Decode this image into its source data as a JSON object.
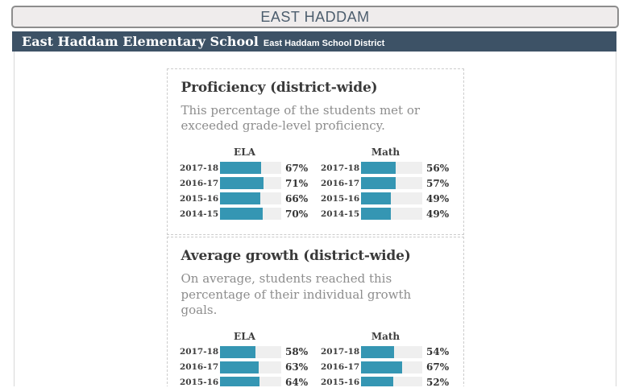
{
  "banner": {
    "label": "EAST HADDAM"
  },
  "header": {
    "school_name": "East Haddam Elementary School",
    "district_name": "East Haddam School District"
  },
  "colors": {
    "bar_fill": "#3596b3",
    "bar_track": "#efefef",
    "header_bg": "#3d5266",
    "banner_bg": "#efecec",
    "banner_border": "#8d8d8d",
    "banner_text": "#4d5e6e",
    "content_border": "#d8d8d8",
    "card_border": "#cccccc",
    "heading_text": "#3a3a3a",
    "muted_text": "#8d8d8d",
    "label_text": "#3e3e3e"
  },
  "sections": [
    {
      "title": "Proficiency (district-wide)",
      "description": "This percentage of the students met or exceeded grade-level proficiency.",
      "charts": [
        {
          "subject": "ELA",
          "rows": [
            {
              "year": "2017-18",
              "value": 67,
              "display": "67%"
            },
            {
              "year": "2016-17",
              "value": 71,
              "display": "71%"
            },
            {
              "year": "2015-16",
              "value": 66,
              "display": "66%"
            },
            {
              "year": "2014-15",
              "value": 70,
              "display": "70%"
            }
          ]
        },
        {
          "subject": "Math",
          "rows": [
            {
              "year": "2017-18",
              "value": 56,
              "display": "56%"
            },
            {
              "year": "2016-17",
              "value": 57,
              "display": "57%"
            },
            {
              "year": "2015-16",
              "value": 49,
              "display": "49%"
            },
            {
              "year": "2014-15",
              "value": 49,
              "display": "49%"
            }
          ]
        }
      ]
    },
    {
      "title": "Average growth (district-wide)",
      "description": "On average, students reached this percentage of their individual growth goals.",
      "charts": [
        {
          "subject": "ELA",
          "rows": [
            {
              "year": "2017-18",
              "value": 58,
              "display": "58%"
            },
            {
              "year": "2016-17",
              "value": 63,
              "display": "63%"
            },
            {
              "year": "2015-16",
              "value": 64,
              "display": "64%"
            }
          ]
        },
        {
          "subject": "Math",
          "rows": [
            {
              "year": "2017-18",
              "value": 54,
              "display": "54%"
            },
            {
              "year": "2016-17",
              "value": 67,
              "display": "67%"
            },
            {
              "year": "2015-16",
              "value": 52,
              "display": "52%"
            }
          ]
        }
      ]
    }
  ],
  "chart_data": [
    {
      "type": "bar",
      "orientation": "horizontal",
      "title": "Proficiency (district-wide)",
      "subtitle": "This percentage of the students met or exceeded grade-level proficiency.",
      "categories": [
        "2017-18",
        "2016-17",
        "2015-16",
        "2014-15"
      ],
      "series": [
        {
          "name": "ELA",
          "values": [
            67,
            71,
            66,
            70
          ]
        },
        {
          "name": "Math",
          "values": [
            56,
            57,
            49,
            49
          ]
        }
      ],
      "unit": "%",
      "xlim": [
        0,
        100
      ],
      "grid": false,
      "value_labels": "right of bars"
    },
    {
      "type": "bar",
      "orientation": "horizontal",
      "title": "Average growth (district-wide)",
      "subtitle": "On average, students reached this percentage of their individual growth goals.",
      "categories": [
        "2017-18",
        "2016-17",
        "2015-16"
      ],
      "series": [
        {
          "name": "ELA",
          "values": [
            58,
            63,
            64
          ]
        },
        {
          "name": "Math",
          "values": [
            54,
            67,
            52
          ]
        }
      ],
      "unit": "%",
      "xlim": [
        0,
        100
      ],
      "grid": false,
      "value_labels": "right of bars"
    }
  ]
}
